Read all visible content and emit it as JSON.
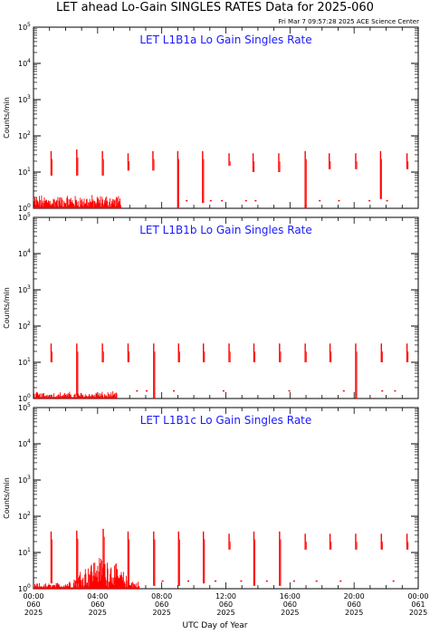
{
  "header": {
    "title": "LET ahead Lo-Gain SINGLES RATES Data for 2025-060",
    "timestamp": "Fri Mar  7 09:57:28 2025 ACE Science Center"
  },
  "chart_data": {
    "type": "line",
    "xlabel": "UTC Day of Year",
    "x_ticks": [
      {
        "hour": 0,
        "lines": [
          "00:00",
          "060",
          "2025"
        ]
      },
      {
        "hour": 4,
        "lines": [
          "04:00",
          "060",
          "2025"
        ]
      },
      {
        "hour": 8,
        "lines": [
          "08:00",
          "060",
          "2025"
        ]
      },
      {
        "hour": 12,
        "lines": [
          "12:00",
          "060",
          "2025"
        ]
      },
      {
        "hour": 16,
        "lines": [
          "16:00",
          "060",
          "2025"
        ]
      },
      {
        "hour": 20,
        "lines": [
          "20:00",
          "060",
          "2025"
        ]
      },
      {
        "hour": 24,
        "lines": [
          "00:00",
          "061",
          "2025"
        ]
      }
    ],
    "xlim": [
      0,
      24
    ],
    "yscale": "log",
    "ylim": [
      1,
      100000
    ],
    "y_ticks": [
      {
        "value": 1,
        "exp": "0"
      },
      {
        "value": 10,
        "exp": "1"
      },
      {
        "value": 100,
        "exp": "2"
      },
      {
        "value": 1000,
        "exp": "3"
      },
      {
        "value": 10000,
        "exp": "4"
      },
      {
        "value": 100000,
        "exp": "5"
      }
    ],
    "line_color": "#ff0000",
    "panels": [
      {
        "title": "LET L1B1a Lo Gain Singles Rate",
        "ylabel": "Counts/min",
        "spikes": [
          {
            "x": 1.1,
            "top": 38,
            "bottom": 8
          },
          {
            "x": 2.7,
            "top": 42,
            "bottom": 8
          },
          {
            "x": 4.3,
            "top": 38,
            "bottom": 8
          },
          {
            "x": 5.9,
            "top": 33,
            "bottom": 11
          },
          {
            "x": 7.45,
            "top": 38,
            "bottom": 11
          },
          {
            "x": 9.0,
            "top": 38,
            "bottom": 1
          },
          {
            "x": 10.55,
            "top": 38,
            "bottom": 1.4
          },
          {
            "x": 12.2,
            "top": 33,
            "bottom": 15
          },
          {
            "x": 13.7,
            "top": 33,
            "bottom": 10
          },
          {
            "x": 15.3,
            "top": 33,
            "bottom": 10
          },
          {
            "x": 16.95,
            "top": 38,
            "bottom": 1
          },
          {
            "x": 18.45,
            "top": 33,
            "bottom": 12
          },
          {
            "x": 20.1,
            "top": 33,
            "bottom": 12
          },
          {
            "x": 21.65,
            "top": 38,
            "bottom": 1.8
          },
          {
            "x": 23.3,
            "top": 33,
            "bottom": 12
          }
        ],
        "noise_end": 5.5,
        "noise_level": 2.5,
        "sparse_dots": [
          9.5,
          11.0,
          11.7,
          13.2,
          13.8,
          17.8,
          19.0,
          20.9,
          22.0
        ]
      },
      {
        "title": "LET L1B1b Lo Gain Singles Rate",
        "ylabel": "Counts/min",
        "spikes": [
          {
            "x": 1.1,
            "top": 33,
            "bottom": 10
          },
          {
            "x": 2.7,
            "top": 33,
            "bottom": 1.2
          },
          {
            "x": 4.3,
            "top": 33,
            "bottom": 10
          },
          {
            "x": 5.9,
            "top": 33,
            "bottom": 10
          },
          {
            "x": 7.5,
            "top": 33,
            "bottom": 1.0
          },
          {
            "x": 9.05,
            "top": 33,
            "bottom": 10
          },
          {
            "x": 10.6,
            "top": 33,
            "bottom": 10
          },
          {
            "x": 12.2,
            "top": 33,
            "bottom": 10
          },
          {
            "x": 13.75,
            "top": 33,
            "bottom": 10
          },
          {
            "x": 15.35,
            "top": 33,
            "bottom": 10
          },
          {
            "x": 16.95,
            "top": 33,
            "bottom": 10
          },
          {
            "x": 18.5,
            "top": 33,
            "bottom": 10
          },
          {
            "x": 20.1,
            "top": 33,
            "bottom": 1.0
          },
          {
            "x": 21.7,
            "top": 33,
            "bottom": 10
          },
          {
            "x": 23.3,
            "top": 33,
            "bottom": 10
          }
        ],
        "noise_end": 5.2,
        "noise_level": 1.6,
        "sparse_dots": [
          6.4,
          7.0,
          8.7,
          11.8,
          15.9,
          19.3,
          21.7,
          22.5
        ]
      },
      {
        "title": "LET L1B1c Lo Gain Singles Rate",
        "ylabel": "Counts/min",
        "spikes": [
          {
            "x": 1.1,
            "top": 38,
            "bottom": 1.4
          },
          {
            "x": 2.7,
            "top": 40,
            "bottom": 1.4
          },
          {
            "x": 4.35,
            "top": 45,
            "bottom": 1.4
          },
          {
            "x": 5.9,
            "top": 38,
            "bottom": 1.4
          },
          {
            "x": 7.5,
            "top": 38,
            "bottom": 1.2
          },
          {
            "x": 9.05,
            "top": 38,
            "bottom": 1.2
          },
          {
            "x": 10.6,
            "top": 38,
            "bottom": 1.4
          },
          {
            "x": 12.2,
            "top": 33,
            "bottom": 12
          },
          {
            "x": 13.75,
            "top": 38,
            "bottom": 1.2
          },
          {
            "x": 15.35,
            "top": 38,
            "bottom": 1.2
          },
          {
            "x": 16.95,
            "top": 33,
            "bottom": 12
          },
          {
            "x": 18.5,
            "top": 33,
            "bottom": 12
          },
          {
            "x": 20.1,
            "top": 33,
            "bottom": 12
          },
          {
            "x": 21.7,
            "top": 33,
            "bottom": 12
          },
          {
            "x": 23.3,
            "top": 33,
            "bottom": 12
          }
        ],
        "noise_end": 6.6,
        "noise_level": 8,
        "sparse_dots": [
          8.0,
          9.6,
          11.3,
          12.9,
          14.5,
          16.2,
          17.6,
          19.1,
          22.4
        ]
      }
    ]
  }
}
